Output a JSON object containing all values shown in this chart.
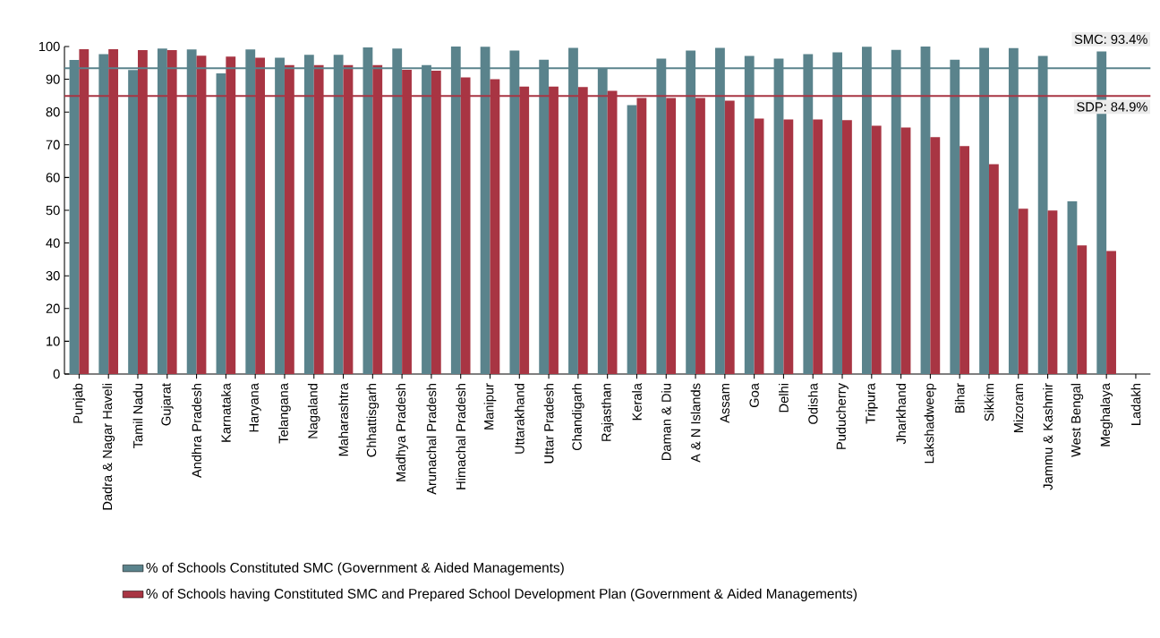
{
  "chart_data": {
    "type": "bar",
    "categories": [
      "Punjab",
      "Dadra & Nagar Haveli",
      "Tamil Nadu",
      "Gujarat",
      "Andhra Pradesh",
      "Karnataka",
      "Haryana",
      "Telangana",
      "Nagaland",
      "Maharashtra",
      "Chhattisgarh",
      "Madhya Pradesh",
      "Arunachal Pradesh",
      "Himachal Pradesh",
      "Manipur",
      "Uttarakhand",
      "Uttar Pradesh",
      "Chandigarh",
      "Rajasthan",
      "Kerala",
      "Daman & Diu",
      "A & N Islands",
      "Assam",
      "Goa",
      "Delhi",
      "Odisha",
      "Puducherry",
      "Tripura",
      "Jharkhand",
      "Lakshadweep",
      "Bihar",
      "Sikkim",
      "Mizoram",
      "Jammu & Kashmir",
      "West Bengal",
      "Meghalaya",
      "Ladakh"
    ],
    "series": [
      {
        "name": "% of Schools Constituted SMC (Government & Aided Managements)",
        "color": "#5a838c",
        "values": [
          95.9,
          97.7,
          92.8,
          99.4,
          99.1,
          91.8,
          99.1,
          96.6,
          97.5,
          97.5,
          99.7,
          99.4,
          94.3,
          100,
          99.9,
          98.8,
          96.0,
          99.6,
          93.3,
          82.1,
          96.3,
          98.8,
          99.6,
          97.1,
          96.3,
          97.7,
          98.2,
          99.9,
          99.0,
          100,
          96.0,
          99.6,
          99.5,
          97.1,
          52.7,
          98.5,
          null
        ]
      },
      {
        "name": "% of Schools having Constituted SMC and Prepared School Development Plan (Government & Aided Managements)",
        "color": "#a83543",
        "values": [
          99.2,
          99.2,
          98.9,
          98.9,
          97.2,
          96.9,
          96.6,
          94.3,
          94.3,
          94.3,
          94.3,
          92.9,
          92.6,
          90.6,
          90.0,
          87.8,
          87.8,
          87.6,
          86.5,
          84.3,
          84.3,
          84.3,
          83.5,
          78.0,
          77.7,
          77.7,
          77.5,
          75.8,
          75.3,
          72.3,
          69.6,
          64.1,
          50.5,
          49.9,
          39.3,
          37.6,
          null
        ]
      }
    ],
    "ylim": [
      0,
      100
    ],
    "yticks": [
      0,
      10,
      20,
      30,
      40,
      50,
      60,
      70,
      80,
      90,
      100
    ],
    "ref_lines": [
      {
        "axis": "y",
        "value": 93.4,
        "label": "SMC: 93.4%",
        "color": "#5a838c"
      },
      {
        "axis": "y",
        "value": 84.9,
        "label": "SDP: 84.9%",
        "color": "#a83543"
      }
    ],
    "legend": "bottom",
    "grid": false
  }
}
